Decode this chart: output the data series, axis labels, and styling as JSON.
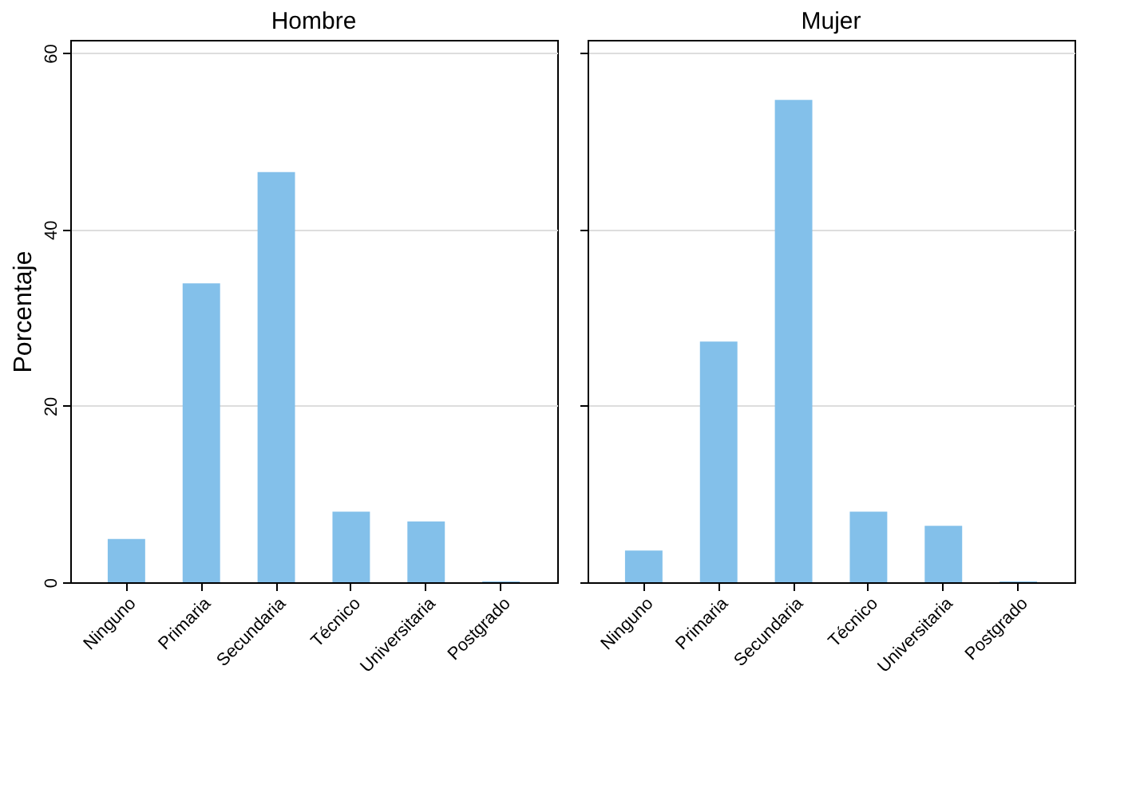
{
  "chart_data": [
    {
      "type": "bar",
      "title": "Hombre",
      "ylabel": "Porcentaje",
      "categories": [
        "Ninguno",
        "Primaria",
        "Secundaria",
        "Técnico",
        "Universitaria",
        "Postgrado"
      ],
      "values": [
        4.9,
        33.9,
        46.5,
        8.0,
        6.9,
        0.1
      ],
      "color": "#83c0ea",
      "ylim": [
        0,
        61.5
      ],
      "yticks": [
        0,
        20,
        40,
        60
      ],
      "grid": "y"
    },
    {
      "type": "bar",
      "title": "Mujer",
      "categories": [
        "Ninguno",
        "Primaria",
        "Secundaria",
        "Técnico",
        "Universitaria",
        "Postgrado"
      ],
      "values": [
        3.6,
        27.3,
        54.7,
        8.0,
        6.4,
        0.1
      ],
      "color": "#83c0ea",
      "ylim": [
        0,
        61.5
      ],
      "yticks": [
        0,
        20,
        40,
        60
      ],
      "grid": "y",
      "tick_labels": "x"
    }
  ]
}
